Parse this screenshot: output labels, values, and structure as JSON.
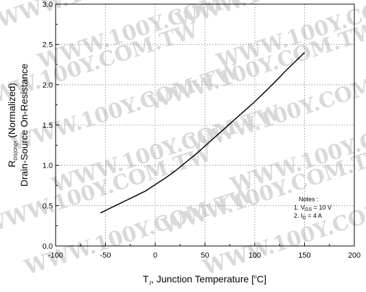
{
  "chart_data": {
    "type": "line",
    "xlabel": {
      "pre": "T",
      "sub": "J",
      "post": ", Junction Temperature [",
      "sup": "o",
      "end": "C]"
    },
    "ylabel": {
      "line1_pre": "R",
      "line1_sub": "DS(ON)",
      "line1_post": ", (Normalized)",
      "line2": "Drain-Source On-Resistance"
    },
    "xlim": [
      -100,
      200
    ],
    "ylim": [
      0.0,
      3.0
    ],
    "x_ticks": [
      -100,
      -50,
      0,
      50,
      100,
      150,
      200
    ],
    "y_ticks": [
      "0.0",
      "0.5",
      "1.0",
      "1.5",
      "2.0",
      "2.5",
      "3.0"
    ],
    "grid": true,
    "series": [
      {
        "x": [
          -55,
          -40,
          -25,
          -10,
          0,
          10,
          20,
          30,
          40,
          50,
          60,
          70,
          80,
          90,
          100,
          110,
          120,
          130,
          140,
          150
        ],
        "y": [
          0.41,
          0.5,
          0.59,
          0.68,
          0.76,
          0.84,
          0.93,
          1.03,
          1.13,
          1.24,
          1.35,
          1.46,
          1.57,
          1.68,
          1.79,
          1.91,
          2.03,
          2.16,
          2.28,
          2.4
        ]
      }
    ],
    "notes": {
      "title": "Notes :",
      "line1": {
        "pre": "1. V",
        "sub": "GS",
        "post": " = 10 V"
      },
      "line2": {
        "pre": "2. I",
        "sub": "D",
        "post": " = 4 A"
      }
    },
    "watermark": "WWW.100Y.COM.TW"
  }
}
